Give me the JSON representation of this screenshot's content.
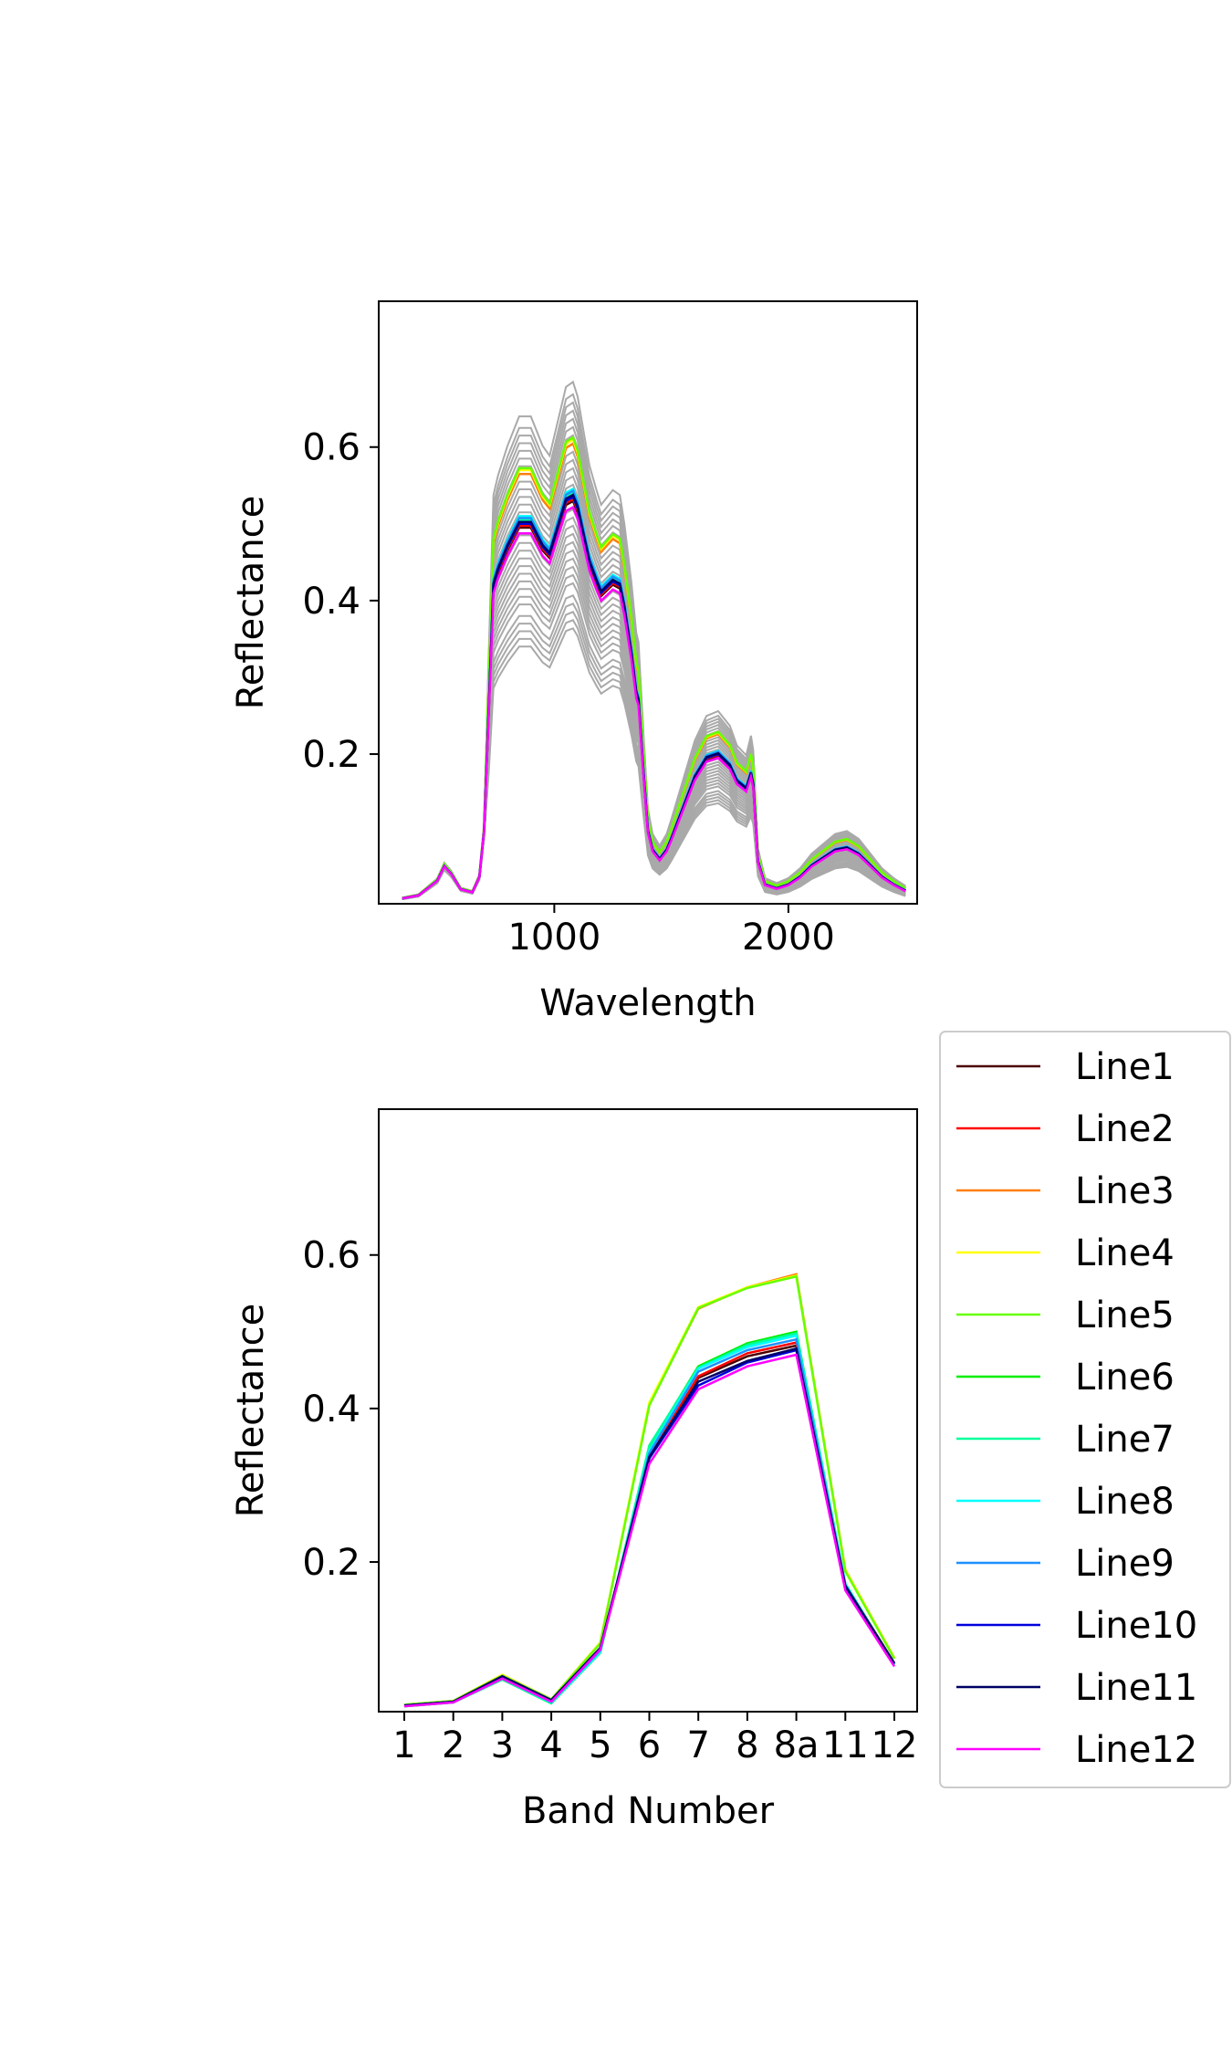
{
  "chart_data": [
    {
      "type": "line",
      "xlabel": "Wavelength",
      "ylabel": "Reflectance",
      "xlim": [
        250,
        2550
      ],
      "ylim": [
        0.005,
        0.79
      ],
      "xticks": [
        1000,
        2000
      ],
      "xtick_labels": [
        "1000",
        "2000"
      ],
      "yticks": [
        0.2,
        0.4,
        0.6
      ],
      "ytick_labels": [
        "0.2",
        "0.4",
        "0.6"
      ],
      "background_color": "#a9a9a9",
      "background_curve_scales": [
        0.68,
        0.7,
        0.72,
        0.74,
        0.76,
        0.79,
        0.81,
        0.83,
        0.85,
        0.87,
        0.89,
        0.91,
        0.93,
        0.95,
        0.97,
        0.99,
        1.01,
        1.03,
        1.05,
        1.07,
        1.09,
        1.11,
        1.13,
        1.15,
        1.17,
        1.19,
        1.21,
        1.23,
        1.25,
        1.28
      ],
      "base_spectrum": {
        "x": [
          350,
          420,
          500,
          530,
          560,
          600,
          650,
          680,
          700,
          720,
          740,
          760,
          800,
          850,
          900,
          950,
          980,
          1000,
          1050,
          1080,
          1100,
          1150,
          1180,
          1200,
          1250,
          1280,
          1300,
          1330,
          1350,
          1360,
          1380,
          1400,
          1420,
          1450,
          1480,
          1500,
          1550,
          1600,
          1650,
          1700,
          1750,
          1780,
          1800,
          1820,
          1840,
          1850,
          1870,
          1900,
          1950,
          2000,
          2050,
          2100,
          2150,
          2200,
          2250,
          2300,
          2350,
          2400,
          2450,
          2500
        ],
        "y": [
          0.012,
          0.016,
          0.035,
          0.054,
          0.044,
          0.024,
          0.02,
          0.04,
          0.1,
          0.26,
          0.42,
          0.44,
          0.47,
          0.5,
          0.5,
          0.47,
          0.46,
          0.48,
          0.53,
          0.535,
          0.52,
          0.45,
          0.425,
          0.41,
          0.425,
          0.42,
          0.39,
          0.33,
          0.28,
          0.27,
          0.18,
          0.1,
          0.075,
          0.063,
          0.075,
          0.09,
          0.13,
          0.17,
          0.195,
          0.2,
          0.185,
          0.165,
          0.16,
          0.155,
          0.175,
          0.16,
          0.06,
          0.03,
          0.025,
          0.03,
          0.04,
          0.055,
          0.065,
          0.075,
          0.078,
          0.07,
          0.055,
          0.04,
          0.03,
          0.022
        ]
      },
      "series": [
        {
          "name": "Line1",
          "color": "#4b0000",
          "scale": 0.99
        },
        {
          "name": "Line2",
          "color": "#ff0000",
          "scale": 0.995
        },
        {
          "name": "Line3",
          "color": "#ff7f0e",
          "scale": 1.13
        },
        {
          "name": "Line4",
          "color": "#ffff00",
          "scale": 1.14
        },
        {
          "name": "Line5",
          "color": "#66ff00",
          "scale": 1.145
        },
        {
          "name": "Line6",
          "color": "#00ee00",
          "scale": 1.0
        },
        {
          "name": "Line7",
          "color": "#00ff99",
          "scale": 1.01
        },
        {
          "name": "Line8",
          "color": "#00ffff",
          "scale": 1.02
        },
        {
          "name": "Line9",
          "color": "#1e90ff",
          "scale": 1.015
        },
        {
          "name": "Line10",
          "color": "#0000dd",
          "scale": 1.0
        },
        {
          "name": "Line11",
          "color": "#000066",
          "scale": 1.005
        },
        {
          "name": "Line12",
          "color": "#ff00ff",
          "scale": 0.975
        }
      ]
    },
    {
      "type": "line",
      "xlabel": "Band Number",
      "ylabel": "Reflectance",
      "categories": [
        "1",
        "2",
        "3",
        "4",
        "5",
        "6",
        "7",
        "8",
        "8a",
        "11",
        "12"
      ],
      "ylim": [
        0.005,
        0.79
      ],
      "yticks": [
        0.2,
        0.4,
        0.6
      ],
      "ytick_labels": [
        "0.2",
        "0.4",
        "0.6"
      ],
      "series": [
        {
          "name": "Line1",
          "color": "#4b0000",
          "values": [
            0.013,
            0.018,
            0.05,
            0.02,
            0.088,
            0.335,
            0.44,
            0.468,
            0.482,
            0.17,
            0.068
          ]
        },
        {
          "name": "Line2",
          "color": "#ff0000",
          "values": [
            0.013,
            0.018,
            0.05,
            0.02,
            0.088,
            0.337,
            0.442,
            0.472,
            0.486,
            0.171,
            0.068
          ]
        },
        {
          "name": "Line3",
          "color": "#ff7f0e",
          "values": [
            0.014,
            0.019,
            0.053,
            0.021,
            0.095,
            0.405,
            0.53,
            0.558,
            0.575,
            0.19,
            0.075
          ]
        },
        {
          "name": "Line4",
          "color": "#ffff00",
          "values": [
            0.014,
            0.019,
            0.053,
            0.021,
            0.095,
            0.408,
            0.532,
            0.558,
            0.573,
            0.19,
            0.075
          ]
        },
        {
          "name": "Line5",
          "color": "#66ff00",
          "values": [
            0.014,
            0.019,
            0.052,
            0.021,
            0.094,
            0.404,
            0.531,
            0.557,
            0.572,
            0.188,
            0.074
          ]
        },
        {
          "name": "Line6",
          "color": "#00ee00",
          "values": [
            0.012,
            0.017,
            0.047,
            0.016,
            0.082,
            0.35,
            0.455,
            0.485,
            0.5,
            0.172,
            0.066
          ]
        },
        {
          "name": "Line7",
          "color": "#00ff99",
          "values": [
            0.012,
            0.017,
            0.047,
            0.016,
            0.082,
            0.352,
            0.453,
            0.483,
            0.498,
            0.172,
            0.066
          ]
        },
        {
          "name": "Line8",
          "color": "#00ffff",
          "values": [
            0.013,
            0.017,
            0.048,
            0.017,
            0.083,
            0.345,
            0.452,
            0.48,
            0.495,
            0.171,
            0.067
          ]
        },
        {
          "name": "Line9",
          "color": "#1e90ff",
          "values": [
            0.013,
            0.018,
            0.049,
            0.018,
            0.085,
            0.342,
            0.448,
            0.476,
            0.49,
            0.17,
            0.067
          ]
        },
        {
          "name": "Line10",
          "color": "#0000dd",
          "values": [
            0.013,
            0.018,
            0.051,
            0.02,
            0.088,
            0.335,
            0.43,
            0.46,
            0.476,
            0.168,
            0.068
          ]
        },
        {
          "name": "Line11",
          "color": "#000066",
          "values": [
            0.013,
            0.018,
            0.051,
            0.02,
            0.088,
            0.337,
            0.435,
            0.462,
            0.478,
            0.169,
            0.068
          ]
        },
        {
          "name": "Line12",
          "color": "#ff00ff",
          "values": [
            0.012,
            0.017,
            0.048,
            0.018,
            0.086,
            0.328,
            0.425,
            0.455,
            0.47,
            0.163,
            0.064
          ]
        }
      ],
      "legend": {
        "placement": "lower-right-outside",
        "entries": [
          "Line1",
          "Line2",
          "Line3",
          "Line4",
          "Line5",
          "Line6",
          "Line7",
          "Line8",
          "Line9",
          "Line10",
          "Line11",
          "Line12"
        ]
      }
    }
  ]
}
